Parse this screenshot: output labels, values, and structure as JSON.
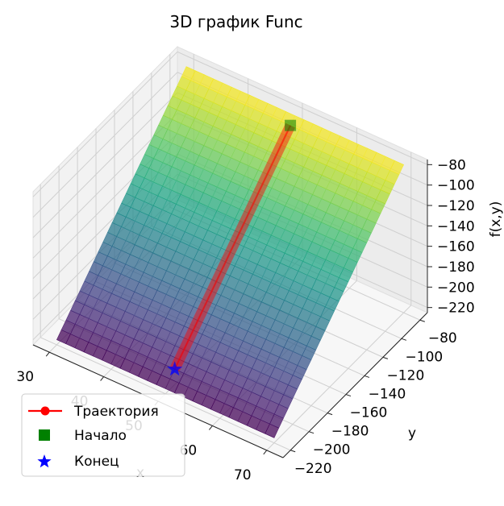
{
  "chart_data": {
    "type": "surface3d",
    "title": "3D график Func",
    "xlabel": "x",
    "ylabel": "y",
    "zlabel": "f(x,y)",
    "x_ticks": [
      30,
      40,
      50,
      60,
      70
    ],
    "x_tick_labels": [
      "30",
      "40",
      "50",
      "60",
      "70"
    ],
    "y_ticks": [
      -220,
      -200,
      -180,
      -160,
      -140,
      -120,
      -100,
      -80
    ],
    "y_tick_labels": [
      "−220",
      "−200",
      "−180",
      "−160",
      "−140",
      "−120",
      "−100",
      "−80"
    ],
    "z_ticks": [
      -220,
      -200,
      -180,
      -160,
      -140,
      -120,
      -100,
      -80
    ],
    "z_tick_labels": [
      "−220",
      "−200",
      "−180",
      "−160",
      "−140",
      "−120",
      "−100",
      "−80"
    ],
    "xlim": [
      27,
      73
    ],
    "ylim": [
      -228,
      -72
    ],
    "zlim": [
      -225,
      -75
    ],
    "surface": {
      "colormap": "viridis",
      "alpha": 0.75,
      "relation": "f(x,y) = y"
    },
    "trajectory": {
      "name": "Траектория",
      "color": "#ff0000",
      "marker": "circle",
      "x": [
        50,
        50
      ],
      "y": [
        -85,
        -210
      ],
      "z": [
        -85,
        -210
      ]
    },
    "start": {
      "name": "Начало",
      "color": "#008000",
      "marker": "square",
      "x": 50,
      "y": -85,
      "z": -85
    },
    "end": {
      "name": "Конец",
      "color": "#0000ff",
      "marker": "star",
      "x": 50,
      "y": -210,
      "z": -210
    },
    "legend_position": "lower-left",
    "grid": true
  }
}
